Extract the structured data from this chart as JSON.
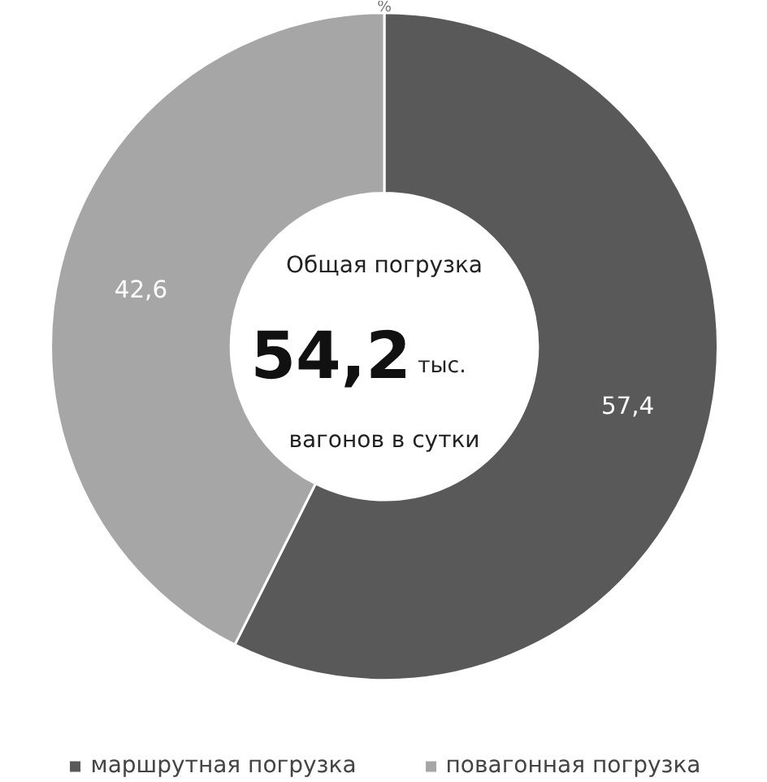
{
  "chart_data": {
    "type": "donut",
    "categories": [
      "маршрутная погрузка",
      "повагонная погрузка"
    ],
    "values": [
      57.4,
      42.6
    ],
    "colors": [
      "#595959",
      "#a6a6a6"
    ],
    "value_labels": [
      "57,4",
      "42,6"
    ],
    "annotations": [
      "%",
      "Общая погрузка",
      "54,2",
      "тыс.",
      "вагонов в сутки"
    ],
    "legend": "bottom"
  }
}
